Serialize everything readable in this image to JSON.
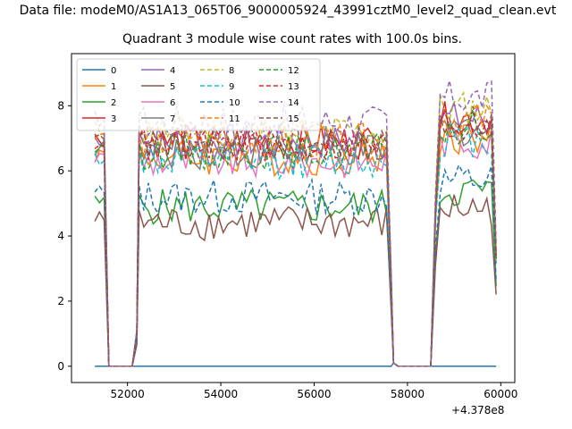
{
  "figure": {
    "suptitle": "Data file: modeM0/AS1A13_065T06_9000005924_43991cztM0_level2_quad_clean.evt",
    "axis_offset_label": "+4.378e8"
  },
  "chart_data": {
    "type": "line",
    "title": "Quadrant 3 module wise count rates with 100.0s bins.",
    "xlabel": "",
    "ylabel": "",
    "xlim": [
      50800,
      60300
    ],
    "ylim": [
      -0.5,
      9.6
    ],
    "xticks": [
      52000,
      54000,
      56000,
      58000,
      60000
    ],
    "xtick_labels": [
      "52000",
      "54000",
      "56000",
      "58000",
      "60000"
    ],
    "yticks": [
      0,
      2,
      4,
      6,
      8
    ],
    "ytick_labels": [
      "0",
      "2",
      "4",
      "6",
      "8"
    ],
    "x_offset": "+4.378e8",
    "grid": false,
    "legend_position": "top-left",
    "x_segments": [
      [
        51300,
        51600
      ],
      [
        52250,
        57650
      ],
      [
        58600,
        59900
      ]
    ],
    "series": [
      {
        "name": "0",
        "color": "#1f77b4",
        "dashed": false,
        "level": 0.0
      },
      {
        "name": "1",
        "color": "#ff7f0e",
        "dashed": false,
        "level": 6.4
      },
      {
        "name": "2",
        "color": "#2ca02c",
        "dashed": false,
        "level": 4.9
      },
      {
        "name": "3",
        "color": "#d62728",
        "dashed": false,
        "level": 6.9
      },
      {
        "name": "4",
        "color": "#9467bd",
        "dashed": false,
        "level": 6.9
      },
      {
        "name": "5",
        "color": "#8c564b",
        "dashed": false,
        "level": 4.4
      },
      {
        "name": "6",
        "color": "#e377c2",
        "dashed": false,
        "level": 6.3
      },
      {
        "name": "7",
        "color": "#7f7f7f",
        "dashed": false,
        "level": 6.6
      },
      {
        "name": "8",
        "color": "#bcbd22",
        "dashed": true,
        "level": 7.2
      },
      {
        "name": "9",
        "color": "#17becf",
        "dashed": true,
        "level": 6.3
      },
      {
        "name": "10",
        "color": "#1f77b4",
        "dashed": true,
        "level": 5.2
      },
      {
        "name": "11",
        "color": "#ff7f0e",
        "dashed": true,
        "level": 6.9
      },
      {
        "name": "12",
        "color": "#2ca02c",
        "dashed": true,
        "level": 6.6
      },
      {
        "name": "13",
        "color": "#d62728",
        "dashed": true,
        "level": 6.8
      },
      {
        "name": "14",
        "color": "#9467bd",
        "dashed": true,
        "level": 7.5
      },
      {
        "name": "15",
        "color": "#8c564b",
        "dashed": true,
        "level": 6.8
      }
    ]
  }
}
